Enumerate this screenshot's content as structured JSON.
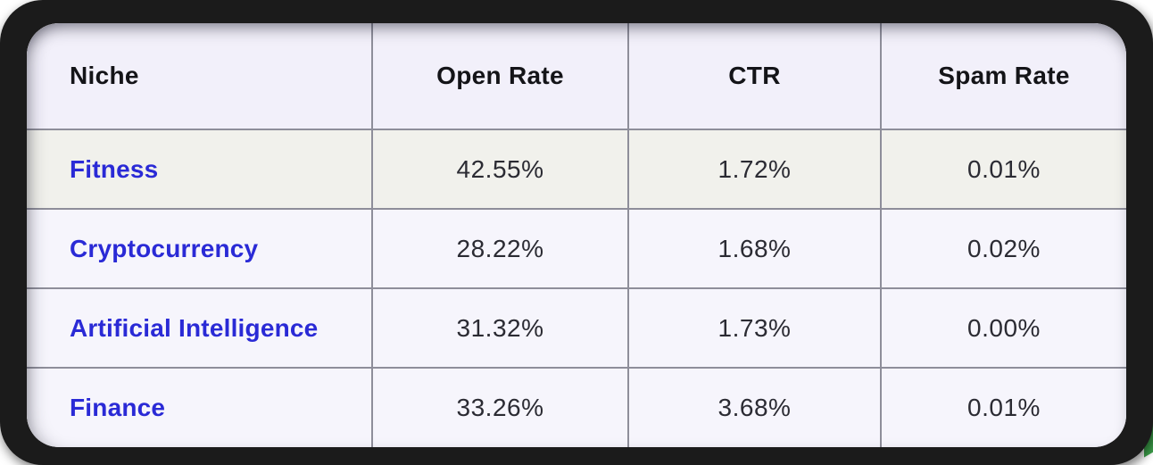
{
  "frame": {
    "color": "#1b1b1b",
    "corner_accent_color": "#3da24b"
  },
  "table": {
    "headers": [
      {
        "label": "Niche"
      },
      {
        "label": "Open Rate"
      },
      {
        "label": "CTR"
      },
      {
        "label": "Spam Rate"
      }
    ],
    "rows": [
      {
        "niche": "Fitness",
        "open_rate": "42.55%",
        "ctr": "1.72%",
        "spam_rate": "0.01%",
        "highlighted": true
      },
      {
        "niche": "Cryptocurrency",
        "open_rate": "28.22%",
        "ctr": "1.68%",
        "spam_rate": "0.02%",
        "highlighted": false
      },
      {
        "niche": "Artificial Intelligence",
        "open_rate": "31.32%",
        "ctr": "1.73%",
        "spam_rate": "0.00%",
        "highlighted": false
      },
      {
        "niche": "Finance",
        "open_rate": "33.26%",
        "ctr": "3.68%",
        "spam_rate": "0.01%",
        "highlighted": false
      }
    ],
    "colors": {
      "header_background": "#f2f0fa",
      "row_background": "#f6f5fc",
      "highlighted_row_background": "#f1f1ec",
      "border": "#8e8e9a",
      "link_blue": "#2a2ad6",
      "header_text": "#141418",
      "value_text": "#2b2b33"
    }
  }
}
